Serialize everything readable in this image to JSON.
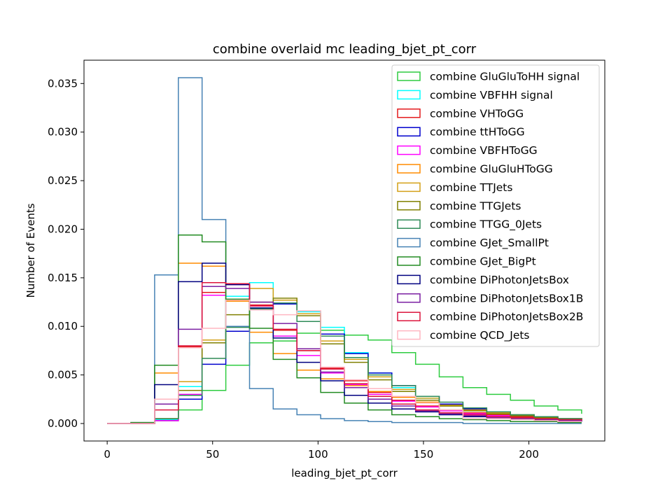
{
  "chart_data": {
    "type": "step",
    "title": "combine overlaid mc leading_bjet_pt_corr",
    "xlabel": "leading_bjet_pt_corr",
    "ylabel": "Number of Events",
    "xlim": [
      -11,
      236
    ],
    "ylim": [
      -0.0018,
      0.0374
    ],
    "xticks": [
      0,
      50,
      100,
      150,
      200
    ],
    "xtick_labels": [
      "0",
      "50",
      "100",
      "150",
      "200"
    ],
    "yticks": [
      0.0,
      0.005,
      0.01,
      0.015,
      0.02,
      0.025,
      0.03,
      0.035
    ],
    "ytick_labels": [
      "0.000",
      "0.005",
      "0.010",
      "0.015",
      "0.020",
      "0.025",
      "0.030",
      "0.035"
    ],
    "legend_position": "top-right",
    "bin_edges": [
      0,
      11.25,
      22.5,
      33.75,
      45,
      56.25,
      67.5,
      78.75,
      90,
      101.25,
      112.5,
      123.75,
      135,
      146.25,
      157.5,
      168.75,
      180,
      191.25,
      202.5,
      213.75,
      225
    ],
    "series": [
      {
        "name": "combine GluGluToHH signal",
        "color": "#2ecc40",
        "values": [
          0,
          0,
          0.0003,
          0.0014,
          0.0034,
          0.006,
          0.0083,
          0.0085,
          0.0093,
          0.0096,
          0.0091,
          0.0086,
          0.0073,
          0.0061,
          0.0048,
          0.0037,
          0.003,
          0.0024,
          0.0018,
          0.0014,
          0.001
        ]
      },
      {
        "name": "combine VBFHH signal",
        "color": "#00ffff",
        "values": [
          0,
          0,
          0.0004,
          0.0038,
          0.0086,
          0.0131,
          0.0145,
          0.0123,
          0.0115,
          0.0099,
          0.0073,
          0.0052,
          0.0037,
          0.0026,
          0.002,
          0.0015,
          0.0012,
          0.0009,
          0.0007,
          0.0005,
          0.0004
        ]
      },
      {
        "name": "combine VHToGG",
        "color": "#e31a1c",
        "values": [
          0,
          0,
          0.0003,
          0.0079,
          0.0135,
          0.0143,
          0.0122,
          0.0096,
          0.0075,
          0.0057,
          0.0044,
          0.0032,
          0.0024,
          0.0018,
          0.0014,
          0.0011,
          0.0009,
          0.0007,
          0.0005,
          0.0004,
          0.0003
        ]
      },
      {
        "name": "combine ttHToGG",
        "color": "#0000cd",
        "values": [
          0,
          0,
          0.0003,
          0.0025,
          0.0061,
          0.0095,
          0.0118,
          0.0123,
          0.0113,
          0.0092,
          0.0072,
          0.0052,
          0.0039,
          0.0028,
          0.002,
          0.0015,
          0.0011,
          0.0008,
          0.0006,
          0.0005,
          0.0004
        ]
      },
      {
        "name": "combine VBFHToGG",
        "color": "#ff00ff",
        "values": [
          0,
          0,
          0.0003,
          0.003,
          0.0132,
          0.0143,
          0.0121,
          0.009,
          0.007,
          0.0052,
          0.004,
          0.003,
          0.0023,
          0.0017,
          0.0013,
          0.001,
          0.0008,
          0.0006,
          0.0005,
          0.0004,
          0.0003
        ]
      },
      {
        "name": "combine GluGluHToGG",
        "color": "#ff8c00",
        "values": [
          0,
          0,
          0.0052,
          0.0165,
          0.0162,
          0.0126,
          0.0094,
          0.0072,
          0.0055,
          0.0046,
          0.0039,
          0.0033,
          0.0027,
          0.0022,
          0.0018,
          0.0014,
          0.0011,
          0.0009,
          0.0007,
          0.0005,
          0.0004
        ]
      },
      {
        "name": "combine TTJets",
        "color": "#d4a017",
        "values": [
          0,
          0,
          0.0005,
          0.0043,
          0.0086,
          0.0127,
          0.0139,
          0.0127,
          0.0113,
          0.0085,
          0.0066,
          0.0048,
          0.0035,
          0.0026,
          0.0019,
          0.0014,
          0.0011,
          0.0008,
          0.0006,
          0.0005,
          0.0004
        ]
      },
      {
        "name": "combine TTGJets",
        "color": "#808000",
        "values": [
          0,
          0,
          0.0005,
          0.0034,
          0.0083,
          0.0112,
          0.0125,
          0.0129,
          0.0111,
          0.0082,
          0.0063,
          0.0045,
          0.0033,
          0.0024,
          0.0018,
          0.0013,
          0.001,
          0.0008,
          0.0006,
          0.0005,
          0.0004
        ]
      },
      {
        "name": "combine TTGG_0Jets",
        "color": "#2e8b57",
        "values": [
          0,
          0,
          0.0005,
          0.0029,
          0.0067,
          0.0099,
          0.0118,
          0.0124,
          0.0105,
          0.009,
          0.0068,
          0.005,
          0.0039,
          0.0028,
          0.0022,
          0.0016,
          0.0012,
          0.0009,
          0.0007,
          0.0005,
          0.0004
        ]
      },
      {
        "name": "combine GJet_SmallPt",
        "color": "#4682b4",
        "values": [
          0,
          0.0001,
          0.0153,
          0.0356,
          0.021,
          0.01,
          0.0036,
          0.0015,
          0.0009,
          0.0005,
          0.0003,
          0.0002,
          0.0001,
          0.0001,
          0.0001,
          0.0,
          0.0,
          0.0,
          0.0,
          0.0,
          0.0
        ]
      },
      {
        "name": "combine GJet_BigPt",
        "color": "#228b22",
        "values": [
          0,
          0.0001,
          0.006,
          0.0194,
          0.0187,
          0.0128,
          0.0098,
          0.0066,
          0.0047,
          0.0032,
          0.0021,
          0.0014,
          0.0009,
          0.0007,
          0.0005,
          0.0004,
          0.0003,
          0.0002,
          0.0002,
          0.0001,
          0.0001
        ]
      },
      {
        "name": "combine DiPhotonJetsBox",
        "color": "#000080",
        "values": [
          0,
          0,
          0.004,
          0.0146,
          0.0165,
          0.0143,
          0.0119,
          0.0088,
          0.0063,
          0.0044,
          0.0029,
          0.0021,
          0.0015,
          0.0012,
          0.0009,
          0.0007,
          0.0006,
          0.0005,
          0.0004,
          0.0003,
          0.0002
        ]
      },
      {
        "name": "combine DiPhotonJetsBox1B",
        "color": "#7b1fa2",
        "values": [
          0,
          0,
          0.002,
          0.0097,
          0.0141,
          0.0139,
          0.0125,
          0.0103,
          0.0077,
          0.0053,
          0.0037,
          0.0025,
          0.0018,
          0.0013,
          0.001,
          0.0008,
          0.0006,
          0.0005,
          0.0004,
          0.0003,
          0.0002
        ]
      },
      {
        "name": "combine DiPhotonJetsBox2B",
        "color": "#dc143c",
        "values": [
          0,
          0,
          0.0014,
          0.008,
          0.0145,
          0.0144,
          0.0121,
          0.0097,
          0.0075,
          0.0056,
          0.0041,
          0.0028,
          0.002,
          0.0014,
          0.0011,
          0.0009,
          0.0007,
          0.0006,
          0.0005,
          0.0004,
          0.0003
        ]
      },
      {
        "name": "combine QCD_Jets",
        "color": "#ffb6c1",
        "values": [
          0,
          0,
          0.0025,
          0.0078,
          0.0098,
          0.0127,
          0.0117,
          0.0112,
          0.0116,
          0.0058,
          0.0045,
          0.0036,
          0.0028,
          0.0021,
          0.0014,
          0.0005,
          0.0005,
          0.0004,
          0.0003,
          0.0002,
          0.0002
        ]
      }
    ]
  }
}
